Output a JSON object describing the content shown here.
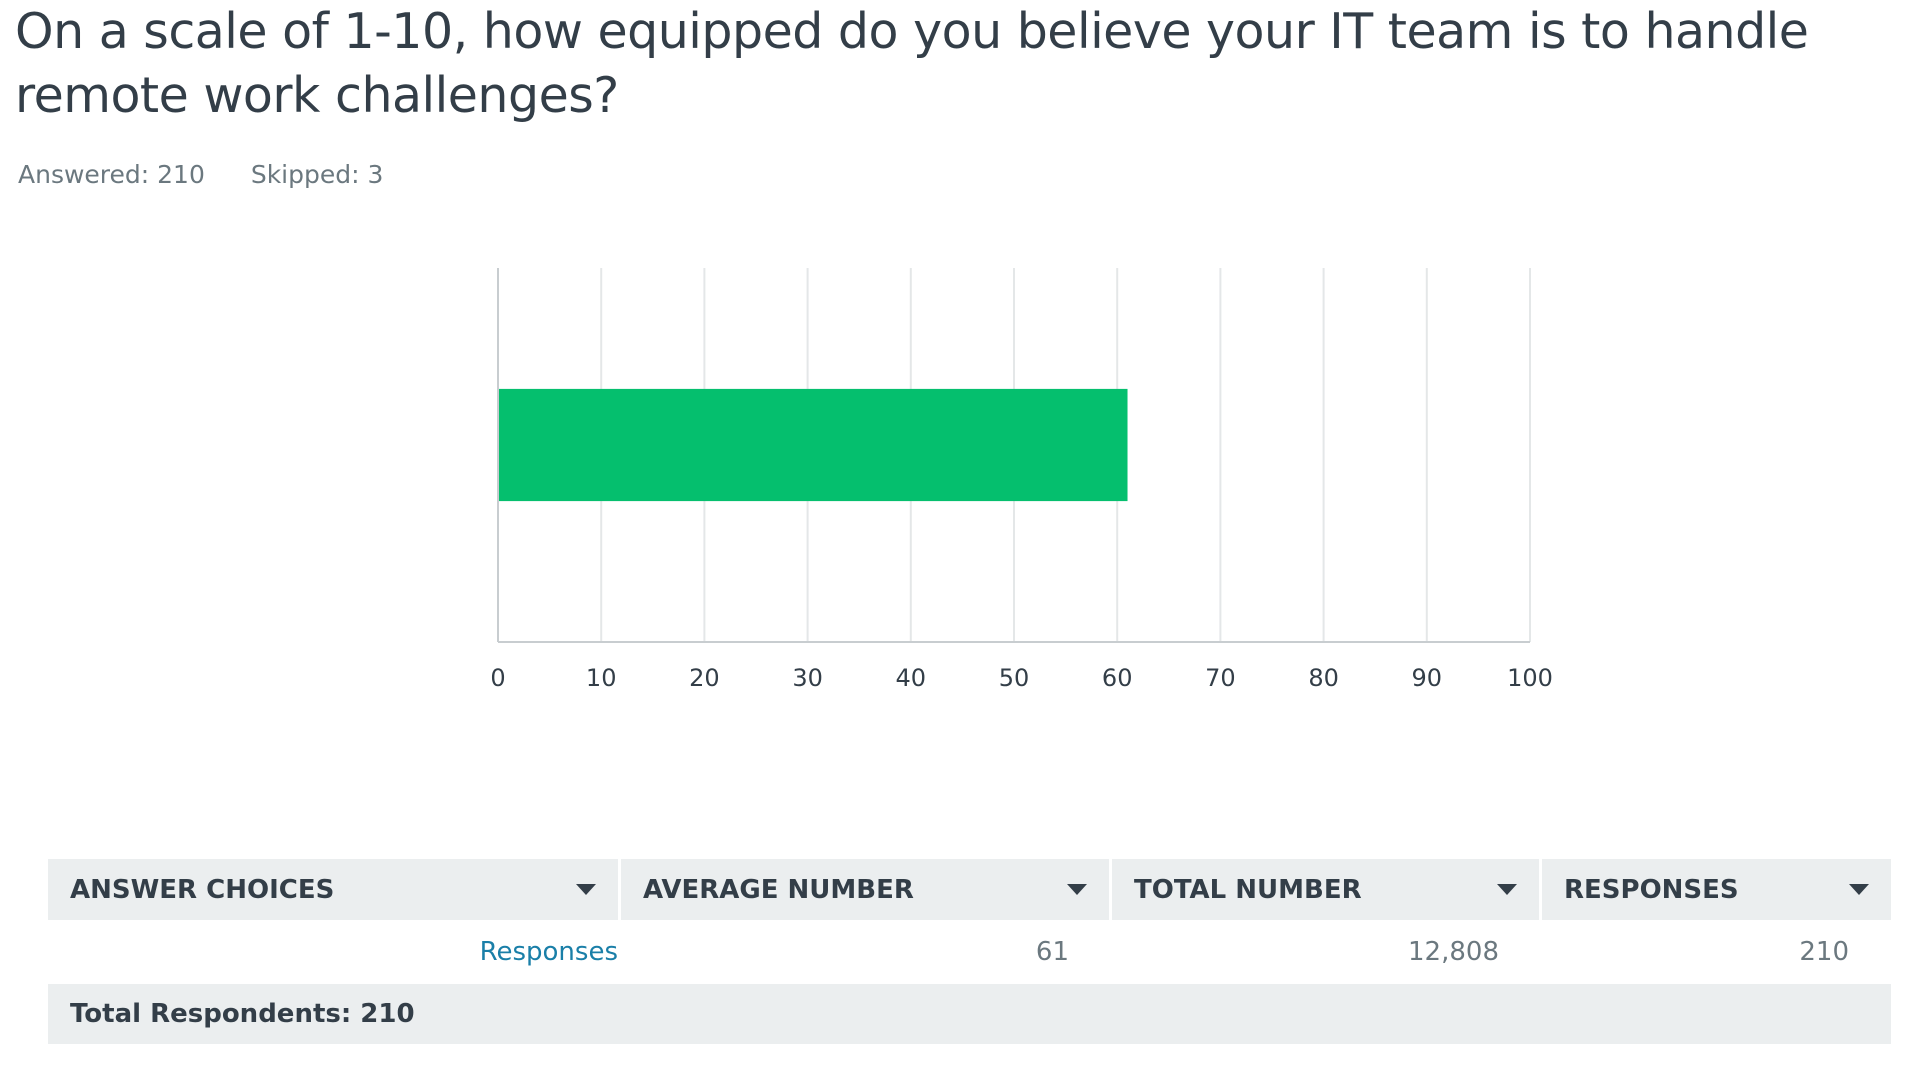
{
  "question": {
    "title": "On a scale of 1-10, how equipped do you believe your IT team is to handle remote work challenges?"
  },
  "stats": {
    "answered_label": "Answered: 210",
    "skipped_label": "Skipped: 3"
  },
  "chart_data": {
    "type": "bar",
    "orientation": "horizontal",
    "categories": [
      "Responses"
    ],
    "values": [
      61
    ],
    "xlim": [
      0,
      100
    ],
    "xticks": [
      "0",
      "10",
      "20",
      "30",
      "40",
      "50",
      "60",
      "70",
      "80",
      "90",
      "100"
    ],
    "grid": true,
    "bar_color": "#05bf6e",
    "title": "",
    "xlabel": "",
    "ylabel": ""
  },
  "table": {
    "headers": [
      "ANSWER CHOICES",
      "AVERAGE NUMBER",
      "TOTAL NUMBER",
      "RESPONSES"
    ],
    "rows": [
      {
        "choice": "Responses",
        "average": "61",
        "total": "12,808",
        "responses": "210"
      }
    ],
    "total_respondents": "Total Respondents: 210"
  },
  "colors": {
    "text": "#333e48",
    "muted": "#6b787f",
    "link": "#1a7fa8",
    "header_bg": "#ebeeef",
    "bar": "#05bf6e",
    "grid": "#e4e7e8",
    "axis": "#c8cdd0"
  }
}
